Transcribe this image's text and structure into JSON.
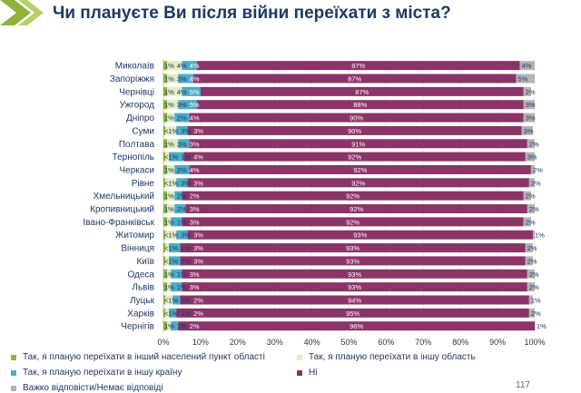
{
  "title": "Чи плануєте Ви після війни переїхати з міста?",
  "page_number": "117",
  "icons": {
    "logo": "green-chevron-logo"
  },
  "chart_data": {
    "type": "bar",
    "orientation": "horizontal",
    "stacked": true,
    "xlim": [
      0,
      100
    ],
    "xticks": [
      "0%",
      "10%",
      "20%",
      "30%",
      "40%",
      "50%",
      "60%",
      "70%",
      "80%",
      "90%",
      "100%"
    ],
    "legend_placement": "bottom",
    "categories": [
      "Миколаїв",
      "Запоріжжя",
      "Чернівці",
      "Ужгород",
      "Дніпро",
      "Суми",
      "Полтава",
      "Тернопіль",
      "Черкаси",
      "Рівне",
      "Хмельницький",
      "Кропивницький",
      "Івано-Франківськ",
      "Житомир",
      "Вінниця",
      "Київ",
      "Одеса",
      "Львів",
      "Луцьк",
      "Харків",
      "Чернігів"
    ],
    "series": [
      {
        "name": "Так, я планую переїхати в інший населений пункт області",
        "color": "#8db33a",
        "values": [
          1,
          1,
          1,
          1,
          1,
          0.5,
          1,
          0.5,
          1,
          0.5,
          1,
          1,
          1,
          0.5,
          0.5,
          0.5,
          1,
          1,
          0.5,
          0.5,
          1
        ],
        "labels": [
          "1%",
          "1%",
          "1%",
          "1%",
          "1%",
          "<1%",
          "1%",
          "<1%",
          "1%",
          "<1%",
          "1%",
          "1%",
          "1%",
          "<1%",
          "<1%",
          "<1%",
          "1%",
          "1%",
          "<1%",
          "<1%",
          "1%"
        ]
      },
      {
        "name": "Так, я планую переїхати в іншу область",
        "color": "#e4ecc0",
        "values": [
          4,
          3,
          4,
          3,
          2,
          3,
          3,
          1,
          2,
          3,
          2,
          2,
          1,
          3,
          1,
          1,
          1,
          1,
          2,
          1,
          1
        ],
        "labels": [
          "4%",
          "3%",
          "4%",
          "3%",
          "2%",
          "3%",
          "3%",
          "1%",
          "2%",
          "3%",
          "2%",
          "2%",
          "1%",
          "3%",
          "1%",
          "1%",
          "1%",
          "1%",
          "2%",
          "1%",
          "1%"
        ]
      },
      {
        "name": "Так, я планую переїхати в іншу країну",
        "color": "#4bacc6",
        "values": [
          4,
          4,
          5,
          5,
          4,
          3,
          3,
          4,
          4,
          3,
          2,
          3,
          3,
          3,
          3,
          3,
          3,
          3,
          2,
          2,
          2
        ],
        "labels": [
          "4%",
          "4%",
          "5%",
          "5%",
          "4%",
          "3%",
          "3%",
          "4%",
          "4%",
          "3%",
          "2%",
          "3%",
          "3%",
          "3%",
          "3%",
          "3%",
          "3%",
          "3%",
          "2%",
          "2%",
          "2%"
        ]
      },
      {
        "name": "Ні",
        "color": "#8b3468",
        "values": [
          87,
          87,
          87,
          88,
          90,
          90,
          91,
          92,
          92,
          92,
          92,
          92,
          92,
          93,
          93,
          93,
          93,
          93,
          94,
          95,
          96
        ],
        "labels": [
          "87%",
          "87%",
          "87%",
          "88%",
          "90%",
          "90%",
          "91%",
          "92%",
          "92%",
          "92%",
          "92%",
          "92%",
          "92%",
          "93%",
          "93%",
          "93%",
          "93%",
          "93%",
          "94%",
          "95%",
          "96%"
        ]
      },
      {
        "name": "Важко відповісти/Немає відповіді",
        "color": "#b3b3b3",
        "values": [
          4,
          5,
          2,
          3,
          3,
          3,
          2,
          3,
          2,
          2,
          2,
          2,
          2,
          1,
          2,
          2,
          2,
          2,
          1,
          2,
          1
        ],
        "labels": [
          "4%",
          "5%",
          "2%",
          "3%",
          "3%",
          "3%",
          "2%",
          "3%",
          "2%",
          "2%",
          "2%",
          "2%",
          "2%",
          "1%",
          "2%",
          "2%",
          "2%",
          "2%",
          "1%",
          "2%",
          "1%"
        ]
      }
    ]
  }
}
